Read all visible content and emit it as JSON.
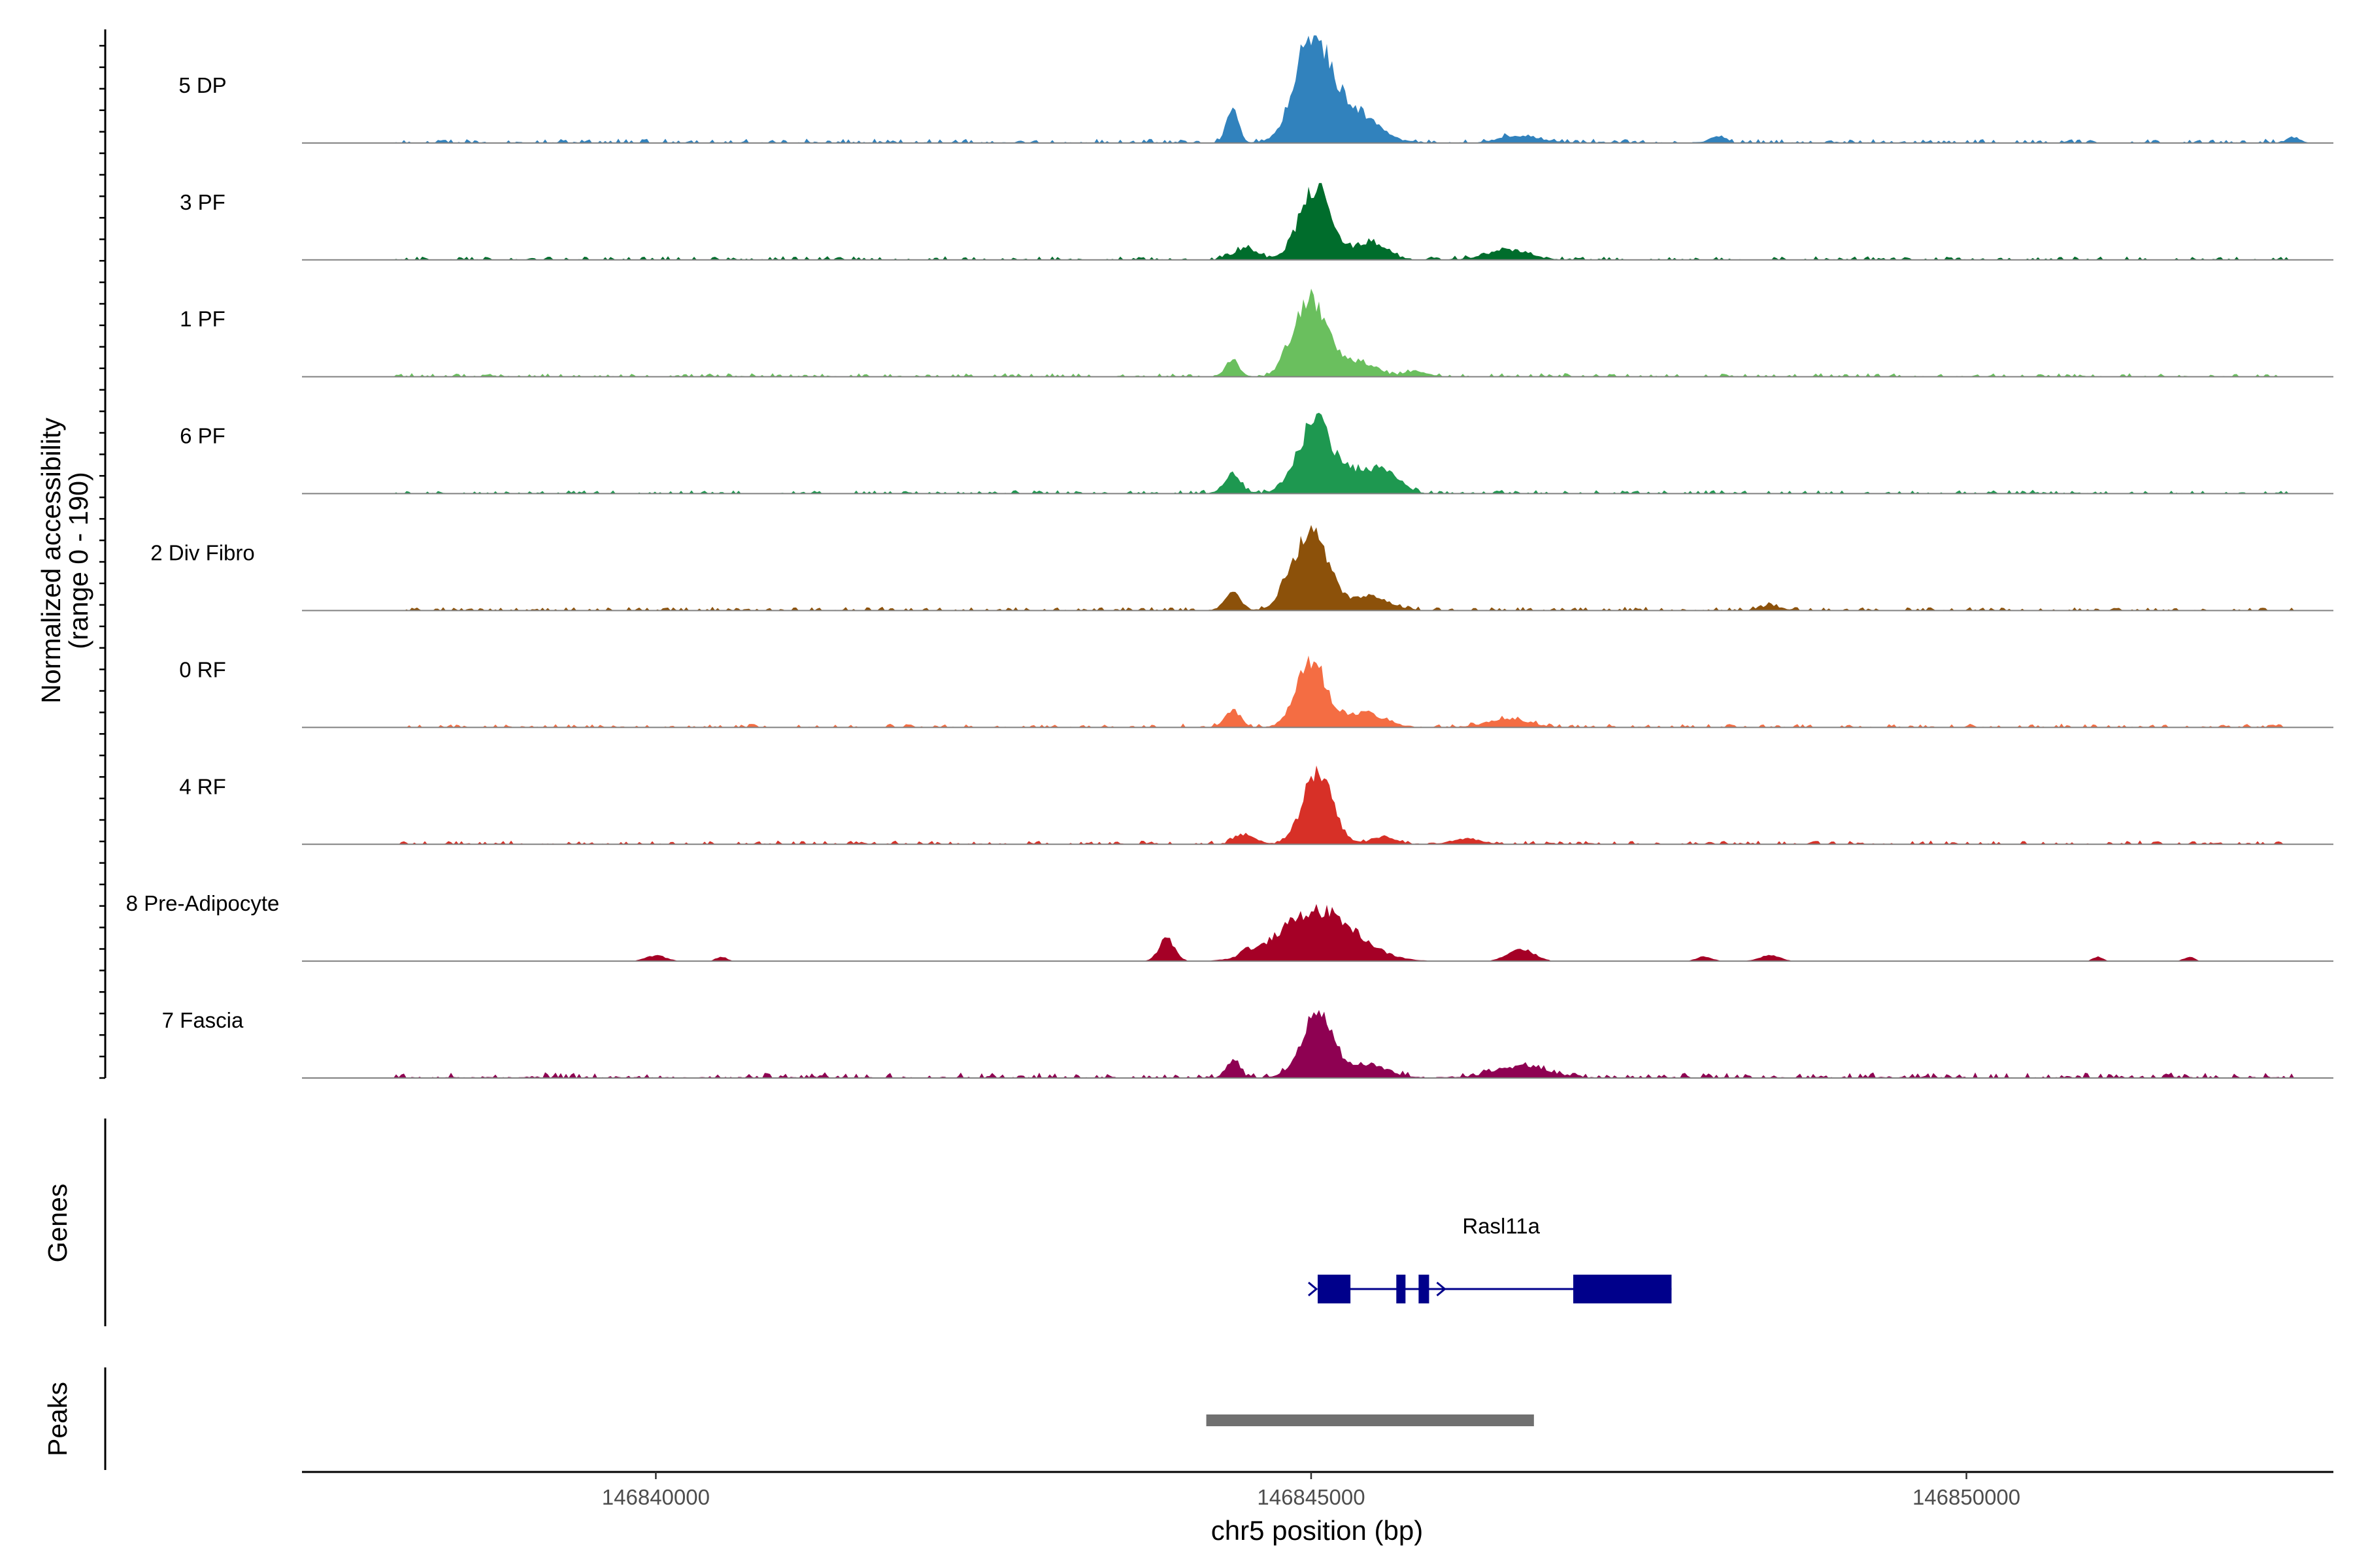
{
  "chart_data": {
    "type": "area",
    "title": "",
    "ylabel_line1": "Normalized accessibility",
    "ylabel_line2": "(range 0 - 190)",
    "xlabel": "chr5 position (bp)",
    "ylim": [
      0,
      190
    ],
    "xlim": [
      146837300,
      146852800
    ],
    "x_ticks": [
      146840000,
      146845000,
      146850000
    ],
    "x_tick_labels": [
      "146840000",
      "146845000",
      "146850000"
    ],
    "tracks": [
      {
        "name": "5 DP",
        "color": "#3182bd",
        "peaks": [
          [
            146845000,
            175,
            130
          ],
          [
            146844400,
            60,
            45
          ],
          [
            146845300,
            60,
            180
          ],
          [
            146846600,
            12,
            150
          ],
          [
            146848100,
            12,
            60
          ],
          [
            146852500,
            10,
            50
          ]
        ],
        "noise": 7,
        "bg_start": 146838000,
        "bg_end": 146852500
      },
      {
        "name": "3 PF",
        "color": "#006d2c",
        "peaks": [
          [
            146845030,
            125,
            120
          ],
          [
            146844500,
            20,
            90
          ],
          [
            146845450,
            30,
            120
          ],
          [
            146846500,
            18,
            150
          ]
        ],
        "noise": 6,
        "bg_start": 146838000,
        "bg_end": 146852500
      },
      {
        "name": "1 PF",
        "color": "#6abf5e",
        "peaks": [
          [
            146845000,
            135,
            120
          ],
          [
            146844400,
            30,
            50
          ],
          [
            146844800,
            18,
            40
          ],
          [
            146845350,
            25,
            140
          ],
          [
            146845800,
            10,
            80
          ]
        ],
        "noise": 6,
        "bg_start": 146838000,
        "bg_end": 146852500
      },
      {
        "name": "6 PF",
        "color": "#1e9850",
        "peaks": [
          [
            146845030,
            125,
            130
          ],
          [
            146844400,
            35,
            60
          ],
          [
            146845400,
            40,
            150
          ],
          [
            146845600,
            22,
            100
          ]
        ],
        "noise": 6,
        "bg_start": 146838000,
        "bg_end": 146852500
      },
      {
        "name": "2 Div Fibro",
        "color": "#8c510a",
        "peaks": [
          [
            146845000,
            140,
            130
          ],
          [
            146844400,
            32,
            60
          ],
          [
            146844800,
            15,
            60
          ],
          [
            146845450,
            25,
            140
          ],
          [
            146848500,
            8,
            80
          ]
        ],
        "noise": 6,
        "bg_start": 146838000,
        "bg_end": 146852500
      },
      {
        "name": "0 RF",
        "color": "#f46d43",
        "peaks": [
          [
            146845000,
            115,
            110
          ],
          [
            146844400,
            30,
            60
          ],
          [
            146845400,
            25,
            150
          ],
          [
            146846500,
            15,
            150
          ]
        ],
        "noise": 6,
        "bg_start": 146838000,
        "bg_end": 146852500
      },
      {
        "name": "4 RF",
        "color": "#d73027",
        "peaks": [
          [
            146845050,
            130,
            110
          ],
          [
            146844500,
            15,
            80
          ],
          [
            146845550,
            12,
            100
          ],
          [
            146846200,
            10,
            100
          ]
        ],
        "noise": 6,
        "bg_start": 146838000,
        "bg_end": 146852500
      },
      {
        "name": "8 Pre-Adipocyte",
        "color": "#a50026",
        "peaks": [
          [
            146845050,
            90,
            280
          ],
          [
            146843900,
            40,
            60
          ],
          [
            146846600,
            22,
            100
          ],
          [
            146844500,
            10,
            40
          ],
          [
            146848000,
            8,
            60
          ],
          [
            146848500,
            10,
            80
          ],
          [
            146840000,
            10,
            80
          ],
          [
            146840500,
            8,
            40
          ],
          [
            146851000,
            8,
            40
          ],
          [
            146851700,
            8,
            40
          ]
        ],
        "noise": 0,
        "bg_start": 146838000,
        "bg_end": 146852500
      },
      {
        "name": "7 Fascia",
        "color": "#8e0152",
        "peaks": [
          [
            146845050,
            110,
            120
          ],
          [
            146844400,
            30,
            50
          ],
          [
            146845450,
            20,
            150
          ],
          [
            146846600,
            20,
            200
          ]
        ],
        "noise": 9,
        "bg_start": 146838000,
        "bg_end": 146852500
      }
    ],
    "genes": [
      {
        "name": "Rasl11a",
        "strand": "+",
        "start": 146845050,
        "end": 146847750,
        "exons": [
          [
            146845050,
            146845300
          ],
          [
            146845650,
            146845720
          ],
          [
            146845820,
            146845900
          ],
          [
            146847000,
            146847750
          ]
        ],
        "color": "#00008b"
      }
    ],
    "peaks_track": {
      "label": "Peaks",
      "regions": [
        [
          146844200,
          146846700
        ]
      ],
      "color": "#707070"
    },
    "genes_label": "Genes"
  }
}
